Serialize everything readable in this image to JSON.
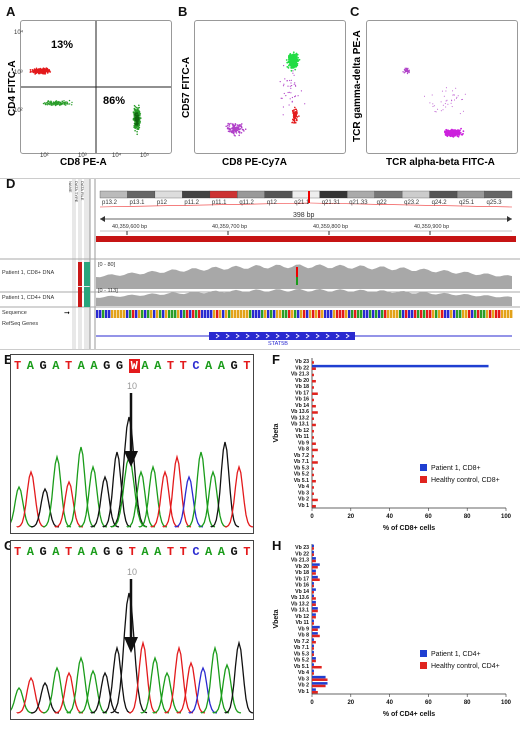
{
  "panels": {
    "a": "A",
    "b": "B",
    "c": "C",
    "d": "D",
    "e": "E",
    "f": "F",
    "g": "G",
    "h": "H"
  },
  "flow_a": {
    "xlabel": "CD8 PE-A",
    "ylabel": "CD4 FITC-A",
    "q_upper_left": "13%",
    "q_lower_right": "86%"
  },
  "flow_b": {
    "xlabel": "CD8 PE-Cy7A",
    "ylabel": "CD57 FITC-A"
  },
  "flow_c": {
    "xlabel": "TCR alpha-beta FITC-A",
    "ylabel": "TCR gamma-delta PE-A"
  },
  "flow_ticks": {
    "t2": "10²",
    "t3": "10³",
    "t4": "10⁴",
    "t5": "10⁵",
    "t0": "0"
  },
  "igv": {
    "bands": [
      "p13.2",
      "p13.1",
      "p12",
      "p11.2",
      "p11.1",
      "q11.2",
      "q12",
      "q21.1",
      "q21.31",
      "q21.33",
      "q22",
      "q23.2",
      "q24.2",
      "q25.1",
      "q25.3"
    ],
    "span": "398 bp",
    "pos1": "40,359,600 bp",
    "pos2": "40,359,700 bp",
    "pos3": "40,359,800 bp",
    "pos4": "40,359,900 bp",
    "track1": "Patient 1, CD8+ DNA",
    "track1_range": "[0 - 80]",
    "track2": "Patient 1, CD4+ DNA",
    "track2_range": "[0 - 113]",
    "seq": "Sequence",
    "refseq": "RefSeq Genes",
    "gene": "STAT5B",
    "name_col": "NAME",
    "sample_col": "DATA TYPE",
    "rate_col": "DATA FILE"
  },
  "seq_e": {
    "bases": [
      "T",
      "A",
      "G",
      "A",
      "T",
      "A",
      "A",
      "G",
      "G",
      "W",
      "A",
      "A",
      "T",
      "T",
      "C",
      "A",
      "A",
      "G",
      "T"
    ],
    "pos": "10"
  },
  "seq_g": {
    "bases": [
      "T",
      "A",
      "G",
      "A",
      "T",
      "A",
      "A",
      "G",
      "G",
      "T",
      "A",
      "A",
      "T",
      "T",
      "C",
      "A",
      "A",
      "G",
      "T"
    ],
    "pos": "10"
  },
  "colors": {
    "patient": "#1f3fd1",
    "control": "#e0241f",
    "cd4": "#e31a1c",
    "cd8": "#2a9d2a",
    "violet": "#b040c8"
  },
  "chart_data": [
    {
      "type": "bar",
      "orientation": "horizontal",
      "categories": [
        "Vb 1",
        "Vb 2",
        "Vb 3",
        "Vb 4",
        "Vb 5.1",
        "Vb 5.2",
        "Vb 5.3",
        "Vb 7.1",
        "Vb 7.2",
        "Vb 8",
        "Vb 9",
        "Vb 11",
        "Vb 12",
        "Vb 13.1",
        "Vb 13.2",
        "Vb 13.6",
        "Vb 14",
        "Vb 16",
        "Vb 17",
        "Vb 18",
        "Vb 20",
        "Vb 21.3",
        "Vb 22",
        "Vb 23"
      ],
      "series": [
        {
          "name": "Patient 1, CD8+",
          "values": [
            0,
            0,
            0,
            0,
            0,
            0,
            0,
            0,
            0,
            0,
            0,
            0,
            0,
            0,
            0,
            0,
            0,
            0,
            0,
            0,
            0,
            0,
            91,
            0
          ]
        },
        {
          "name": "Healthy control, CD8+",
          "values": [
            2,
            3,
            1,
            1,
            2,
            1,
            1,
            3,
            1,
            3,
            2,
            1,
            1,
            2,
            1,
            3,
            2,
            1,
            3,
            1,
            2,
            1,
            2,
            1
          ]
        }
      ],
      "xlabel": "% of CD8+ cells",
      "ylabel": "Vbeta",
      "xlim": [
        0,
        100
      ],
      "xticks": [
        "0",
        "20",
        "40",
        "60",
        "80",
        "100"
      ]
    },
    {
      "type": "bar",
      "orientation": "horizontal",
      "categories": [
        "Vb 1",
        "Vb 2",
        "Vb 3",
        "Vb 4",
        "Vb 5.1",
        "Vb 5.2",
        "Vb 5.3",
        "Vb 7.1",
        "Vb 7.2",
        "Vb 8",
        "Vb 9",
        "Vb 11",
        "Vb 12",
        "Vb 13.1",
        "Vb 13.2",
        "Vb 13.6",
        "Vb 14",
        "Vb 16",
        "Vb 17",
        "Vb 18",
        "Vb 20",
        "Vb 21.3",
        "Vb 22",
        "Vb 23"
      ],
      "series": [
        {
          "name": "Patient 1, CD4+",
          "values": [
            2,
            8,
            7,
            1,
            1,
            2,
            1,
            1,
            1,
            3,
            4,
            1,
            2,
            3,
            2,
            1,
            2,
            1,
            3,
            2,
            4,
            2,
            1,
            1
          ]
        },
        {
          "name": "Healthy control, CD4+",
          "values": [
            3,
            7,
            8,
            1,
            5,
            2,
            1,
            1,
            2,
            4,
            3,
            1,
            2,
            3,
            2,
            2,
            1,
            1,
            4,
            2,
            3,
            2,
            1,
            1
          ]
        }
      ],
      "xlabel": "% of CD4+ cells",
      "ylabel": "Vbeta",
      "xlim": [
        0,
        100
      ],
      "xticks": [
        "0",
        "20",
        "40",
        "60",
        "80",
        "100"
      ]
    }
  ]
}
